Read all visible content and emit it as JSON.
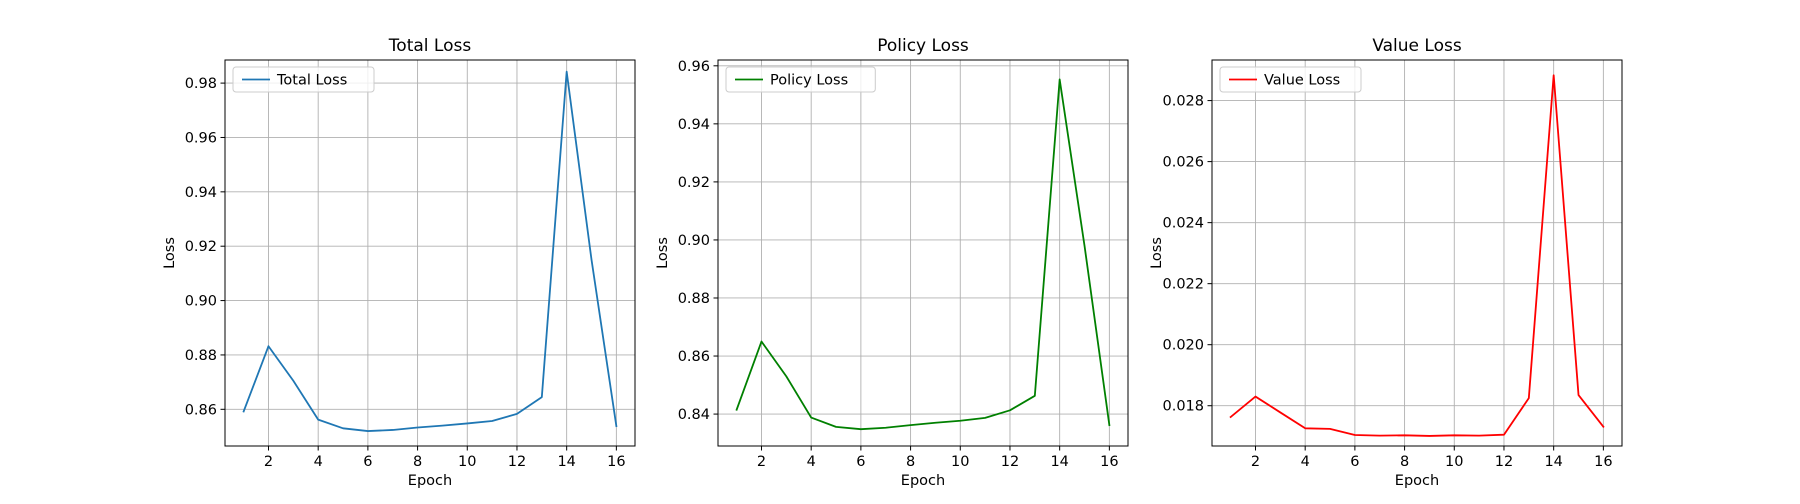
{
  "chart_data": [
    {
      "type": "line",
      "title": "Total Loss",
      "xlabel": "Epoch",
      "ylabel": "Loss",
      "xlim": [
        0.25,
        16.75
      ],
      "ylim": [
        0.8465,
        0.9885
      ],
      "xticks": [
        2,
        4,
        6,
        8,
        10,
        12,
        14,
        16
      ],
      "xtick_labels": [
        "2",
        "4",
        "6",
        "8",
        "10",
        "12",
        "14",
        "16"
      ],
      "yticks": [
        0.86,
        0.88,
        0.9,
        0.92,
        0.94,
        0.96,
        0.98
      ],
      "ytick_labels": [
        "0.86",
        "0.88",
        "0.90",
        "0.92",
        "0.94",
        "0.96",
        "0.98"
      ],
      "grid": true,
      "legend_position": "upper left",
      "series": [
        {
          "name": "Total Loss",
          "color": "#1f77b4",
          "x": [
            1,
            2,
            3,
            4,
            5,
            6,
            7,
            8,
            9,
            10,
            11,
            12,
            13,
            14,
            15,
            16
          ],
          "y": [
            0.8592,
            0.8832,
            0.8705,
            0.8562,
            0.853,
            0.852,
            0.8524,
            0.8533,
            0.854,
            0.8548,
            0.8557,
            0.8583,
            0.8645,
            0.9842,
            0.915,
            0.8538
          ]
        }
      ]
    },
    {
      "type": "line",
      "title": "Policy Loss",
      "xlabel": "Epoch",
      "ylabel": "Loss",
      "xlim": [
        0.25,
        16.75
      ],
      "ylim": [
        0.829,
        0.962
      ],
      "xticks": [
        2,
        4,
        6,
        8,
        10,
        12,
        14,
        16
      ],
      "xtick_labels": [
        "2",
        "4",
        "6",
        "8",
        "10",
        "12",
        "14",
        "16"
      ],
      "yticks": [
        0.84,
        0.86,
        0.88,
        0.9,
        0.92,
        0.94,
        0.96
      ],
      "ytick_labels": [
        "0.84",
        "0.86",
        "0.88",
        "0.90",
        "0.92",
        "0.94",
        "0.96"
      ],
      "grid": true,
      "legend_position": "upper left",
      "series": [
        {
          "name": "Policy Loss",
          "color": "#008000",
          "x": [
            1,
            2,
            3,
            4,
            5,
            6,
            7,
            8,
            9,
            10,
            11,
            12,
            13,
            14,
            15,
            16
          ],
          "y": [
            0.8415,
            0.865,
            0.853,
            0.8388,
            0.8356,
            0.8348,
            0.8353,
            0.8362,
            0.837,
            0.8377,
            0.8387,
            0.8413,
            0.8463,
            0.9553,
            0.898,
            0.8362
          ]
        }
      ]
    },
    {
      "type": "line",
      "title": "Value Loss",
      "xlabel": "Epoch",
      "ylabel": "Loss",
      "xlim": [
        0.25,
        16.75
      ],
      "ylim": [
        0.01668,
        0.02933
      ],
      "xticks": [
        2,
        4,
        6,
        8,
        10,
        12,
        14,
        16
      ],
      "xtick_labels": [
        "2",
        "4",
        "6",
        "8",
        "10",
        "12",
        "14",
        "16"
      ],
      "yticks": [
        0.018,
        0.02,
        0.022,
        0.024,
        0.026,
        0.028
      ],
      "ytick_labels": [
        "0.018",
        "0.020",
        "0.022",
        "0.024",
        "0.026",
        "0.028"
      ],
      "grid": true,
      "legend_position": "upper left",
      "series": [
        {
          "name": "Value Loss",
          "color": "#ff0000",
          "x": [
            1,
            2,
            3,
            4,
            5,
            6,
            7,
            8,
            9,
            10,
            11,
            12,
            13,
            14,
            15,
            16
          ],
          "y": [
            0.01763,
            0.0183,
            0.01778,
            0.01726,
            0.01724,
            0.01704,
            0.01702,
            0.01703,
            0.01701,
            0.01703,
            0.01702,
            0.01705,
            0.01825,
            0.02883,
            0.01835,
            0.01731
          ]
        }
      ]
    }
  ]
}
